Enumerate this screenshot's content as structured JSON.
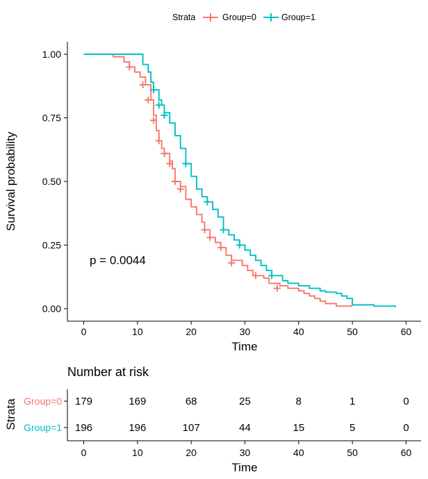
{
  "colors": {
    "group0": "#F8766D",
    "group1": "#00BFC4",
    "axis": "#000000"
  },
  "legend": {
    "title": "Strata",
    "items": [
      "Group=0",
      "Group=1"
    ]
  },
  "chart_data": {
    "type": "line",
    "subtype": "kaplan-meier",
    "title": "",
    "xlabel": "Time",
    "ylabel": "Survival probability",
    "xlim": [
      0,
      60
    ],
    "ylim": [
      0,
      1
    ],
    "x_ticks": [
      0,
      10,
      20,
      30,
      40,
      50,
      60
    ],
    "y_ticks": [
      0.0,
      0.25,
      0.5,
      0.75,
      1.0
    ],
    "x_tick_labels": [
      "0",
      "10",
      "20",
      "30",
      "40",
      "50",
      "60"
    ],
    "y_tick_labels": [
      "0.00",
      "0.25",
      "0.50",
      "0.75",
      "1.00"
    ],
    "annotation": "p = 0.0044",
    "series": [
      {
        "name": "Group=0",
        "steps": [
          [
            0,
            1.0
          ],
          [
            5.5,
            0.99
          ],
          [
            7.5,
            0.97
          ],
          [
            8.5,
            0.95
          ],
          [
            9.5,
            0.93
          ],
          [
            10.5,
            0.91
          ],
          [
            11.5,
            0.88
          ],
          [
            12.5,
            0.82
          ],
          [
            13,
            0.76
          ],
          [
            13.5,
            0.7
          ],
          [
            14,
            0.66
          ],
          [
            14.5,
            0.63
          ],
          [
            15,
            0.61
          ],
          [
            16,
            0.58
          ],
          [
            16.5,
            0.55
          ],
          [
            17,
            0.5
          ],
          [
            18,
            0.48
          ],
          [
            19,
            0.43
          ],
          [
            20,
            0.4
          ],
          [
            21,
            0.37
          ],
          [
            22,
            0.34
          ],
          [
            22.5,
            0.31
          ],
          [
            23.5,
            0.28
          ],
          [
            24.5,
            0.26
          ],
          [
            25.5,
            0.24
          ],
          [
            26.5,
            0.21
          ],
          [
            27.5,
            0.19
          ],
          [
            29.5,
            0.17
          ],
          [
            30.5,
            0.15
          ],
          [
            31.5,
            0.13
          ],
          [
            33.5,
            0.12
          ],
          [
            34.5,
            0.1
          ],
          [
            36.5,
            0.09
          ],
          [
            38,
            0.08
          ],
          [
            40,
            0.07
          ],
          [
            41,
            0.06
          ],
          [
            42,
            0.05
          ],
          [
            43,
            0.04
          ],
          [
            44,
            0.03
          ],
          [
            45,
            0.02
          ],
          [
            47,
            0.01
          ],
          [
            50,
            0.01
          ]
        ],
        "censor": [
          [
            8.5,
            0.95
          ],
          [
            11,
            0.88
          ],
          [
            12,
            0.82
          ],
          [
            13,
            0.74
          ],
          [
            14,
            0.66
          ],
          [
            15,
            0.61
          ],
          [
            16,
            0.57
          ],
          [
            17,
            0.5
          ],
          [
            18,
            0.47
          ],
          [
            22.5,
            0.31
          ],
          [
            23.5,
            0.28
          ],
          [
            25.5,
            0.24
          ],
          [
            27.5,
            0.18
          ],
          [
            32,
            0.13
          ],
          [
            36,
            0.08
          ]
        ]
      },
      {
        "name": "Group=1",
        "steps": [
          [
            0,
            1.0
          ],
          [
            11,
            0.96
          ],
          [
            12,
            0.93
          ],
          [
            12.5,
            0.89
          ],
          [
            13,
            0.86
          ],
          [
            14,
            0.82
          ],
          [
            14.5,
            0.8
          ],
          [
            15,
            0.77
          ],
          [
            16,
            0.73
          ],
          [
            17,
            0.68
          ],
          [
            18,
            0.63
          ],
          [
            19,
            0.57
          ],
          [
            20,
            0.52
          ],
          [
            21,
            0.47
          ],
          [
            22,
            0.44
          ],
          [
            23,
            0.42
          ],
          [
            24,
            0.39
          ],
          [
            25,
            0.36
          ],
          [
            26,
            0.31
          ],
          [
            27,
            0.29
          ],
          [
            28,
            0.27
          ],
          [
            29,
            0.25
          ],
          [
            30,
            0.23
          ],
          [
            31,
            0.21
          ],
          [
            32,
            0.19
          ],
          [
            33,
            0.17
          ],
          [
            34,
            0.15
          ],
          [
            35,
            0.13
          ],
          [
            37,
            0.11
          ],
          [
            38,
            0.1
          ],
          [
            40,
            0.09
          ],
          [
            42,
            0.08
          ],
          [
            44,
            0.07
          ],
          [
            45,
            0.065
          ],
          [
            47,
            0.06
          ],
          [
            48,
            0.05
          ],
          [
            49,
            0.04
          ],
          [
            50,
            0.015
          ],
          [
            54,
            0.01
          ],
          [
            58,
            0.005
          ]
        ],
        "censor": [
          [
            13,
            0.86
          ],
          [
            14,
            0.8
          ],
          [
            15,
            0.76
          ],
          [
            19,
            0.57
          ],
          [
            23,
            0.42
          ],
          [
            26,
            0.31
          ],
          [
            29,
            0.25
          ],
          [
            35,
            0.13
          ]
        ]
      }
    ],
    "risk_table": {
      "title": "Number at risk",
      "ylabel": "Strata",
      "xlabel": "Time",
      "times": [
        0,
        10,
        20,
        30,
        40,
        50,
        60
      ],
      "time_labels": [
        "0",
        "10",
        "20",
        "30",
        "40",
        "50",
        "60"
      ],
      "rows": [
        {
          "label": "Group=0",
          "counts": [
            "179",
            "169",
            "68",
            "25",
            "8",
            "1",
            "0"
          ]
        },
        {
          "label": "Group=1",
          "counts": [
            "196",
            "196",
            "107",
            "44",
            "15",
            "5",
            "0"
          ]
        }
      ]
    }
  }
}
